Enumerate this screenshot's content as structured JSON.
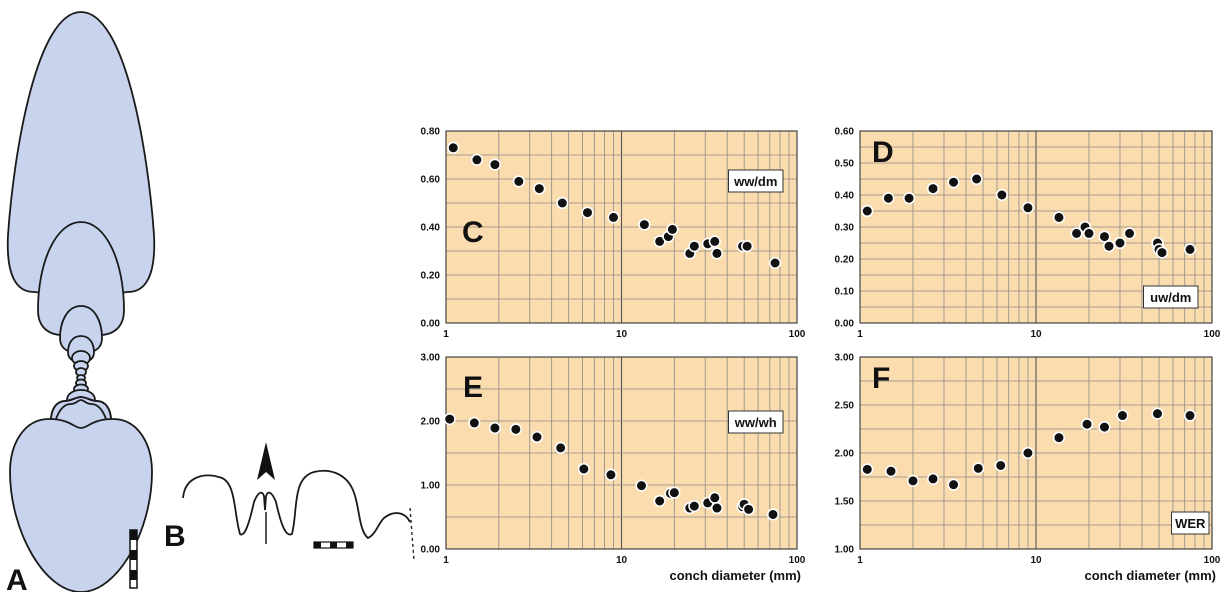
{
  "figure_labels": {
    "a": "A",
    "b": "B"
  },
  "colors": {
    "plot_bg": "#fbdcae",
    "grid": "#8a8a8a",
    "shell_fill": "#c8d4ee",
    "point": "#111111"
  },
  "icons": {
    "arrow": "arrowhead-icon",
    "scale": "scale-bar-icon"
  },
  "chart_data": [
    {
      "id": "C",
      "panel_label": "C",
      "type": "scatter",
      "xscale": "log",
      "xlim": [
        1,
        100
      ],
      "ylim": [
        0,
        0.8
      ],
      "xticks": [
        "1",
        "10",
        "100"
      ],
      "yticks": [
        "0.00",
        "0.20",
        "0.40",
        "0.60",
        "0.80"
      ],
      "xlabel": "",
      "badge": "ww/dm",
      "badge_pos": "top-right",
      "points": [
        [
          1.1,
          0.73
        ],
        [
          1.5,
          0.68
        ],
        [
          1.9,
          0.66
        ],
        [
          2.6,
          0.59
        ],
        [
          3.4,
          0.56
        ],
        [
          4.6,
          0.5
        ],
        [
          6.4,
          0.46
        ],
        [
          9,
          0.44
        ],
        [
          13.5,
          0.41
        ],
        [
          16.5,
          0.34
        ],
        [
          18.5,
          0.36
        ],
        [
          19.5,
          0.39
        ],
        [
          24.5,
          0.29
        ],
        [
          26,
          0.32
        ],
        [
          31,
          0.33
        ],
        [
          34,
          0.34
        ],
        [
          35,
          0.29
        ],
        [
          49,
          0.32
        ],
        [
          52,
          0.32
        ],
        [
          75,
          0.25
        ]
      ]
    },
    {
      "id": "D",
      "panel_label": "D",
      "type": "scatter",
      "xscale": "log",
      "xlim": [
        1,
        100
      ],
      "ylim": [
        0,
        0.6
      ],
      "xticks": [
        "1",
        "10",
        "100"
      ],
      "yticks": [
        "0.00",
        "0.10",
        "0.20",
        "0.30",
        "0.40",
        "0.50",
        "0.60"
      ],
      "xlabel": "",
      "badge": "uw/dm",
      "badge_pos": "bottom-right",
      "points": [
        [
          1.1,
          0.35
        ],
        [
          1.45,
          0.39
        ],
        [
          1.9,
          0.39
        ],
        [
          2.6,
          0.42
        ],
        [
          3.4,
          0.44
        ],
        [
          4.6,
          0.45
        ],
        [
          6.4,
          0.4
        ],
        [
          9,
          0.36
        ],
        [
          13.5,
          0.33
        ],
        [
          17,
          0.28
        ],
        [
          19,
          0.3
        ],
        [
          20,
          0.28
        ],
        [
          24.5,
          0.27
        ],
        [
          26,
          0.24
        ],
        [
          30,
          0.25
        ],
        [
          34,
          0.28
        ],
        [
          49,
          0.25
        ],
        [
          50,
          0.23
        ],
        [
          52,
          0.22
        ],
        [
          75,
          0.23
        ]
      ]
    },
    {
      "id": "E",
      "panel_label": "E",
      "type": "scatter",
      "xscale": "log",
      "xlim": [
        1,
        100
      ],
      "ylim": [
        0,
        3
      ],
      "xticks": [
        "1",
        "10",
        "100"
      ],
      "yticks": [
        "0.00",
        "1.00",
        "2.00",
        "3.00"
      ],
      "xlabel": "conch diameter (mm)",
      "badge": "ww/wh",
      "badge_pos": "middle-right",
      "points": [
        [
          1.05,
          2.03
        ],
        [
          1.45,
          1.97
        ],
        [
          1.9,
          1.89
        ],
        [
          2.5,
          1.87
        ],
        [
          3.3,
          1.75
        ],
        [
          4.5,
          1.58
        ],
        [
          6.1,
          1.25
        ],
        [
          8.7,
          1.16
        ],
        [
          13,
          0.99
        ],
        [
          16.5,
          0.75
        ],
        [
          19,
          0.87
        ],
        [
          20,
          0.88
        ],
        [
          24.5,
          0.64
        ],
        [
          26,
          0.67
        ],
        [
          31,
          0.72
        ],
        [
          34,
          0.8
        ],
        [
          35,
          0.64
        ],
        [
          49,
          0.66
        ],
        [
          50,
          0.7
        ],
        [
          53,
          0.62
        ],
        [
          73,
          0.54
        ]
      ]
    },
    {
      "id": "F",
      "panel_label": "F",
      "type": "scatter",
      "xscale": "log",
      "xlim": [
        1,
        100
      ],
      "ylim": [
        1,
        3
      ],
      "xticks": [
        "1",
        "10",
        "100"
      ],
      "yticks": [
        "1.00",
        "1.50",
        "2.00",
        "2.50",
        "3.00"
      ],
      "xlabel": "conch diameter (mm)",
      "badge": "WER",
      "badge_pos": "bottom-right",
      "points": [
        [
          1.1,
          1.83
        ],
        [
          1.5,
          1.81
        ],
        [
          2,
          1.71
        ],
        [
          2.6,
          1.73
        ],
        [
          3.4,
          1.67
        ],
        [
          4.7,
          1.84
        ],
        [
          6.3,
          1.87
        ],
        [
          9,
          2.0
        ],
        [
          13.5,
          2.16
        ],
        [
          19.5,
          2.3
        ],
        [
          24.5,
          2.27
        ],
        [
          31,
          2.39
        ],
        [
          49,
          2.41
        ],
        [
          75,
          2.39
        ]
      ]
    }
  ]
}
